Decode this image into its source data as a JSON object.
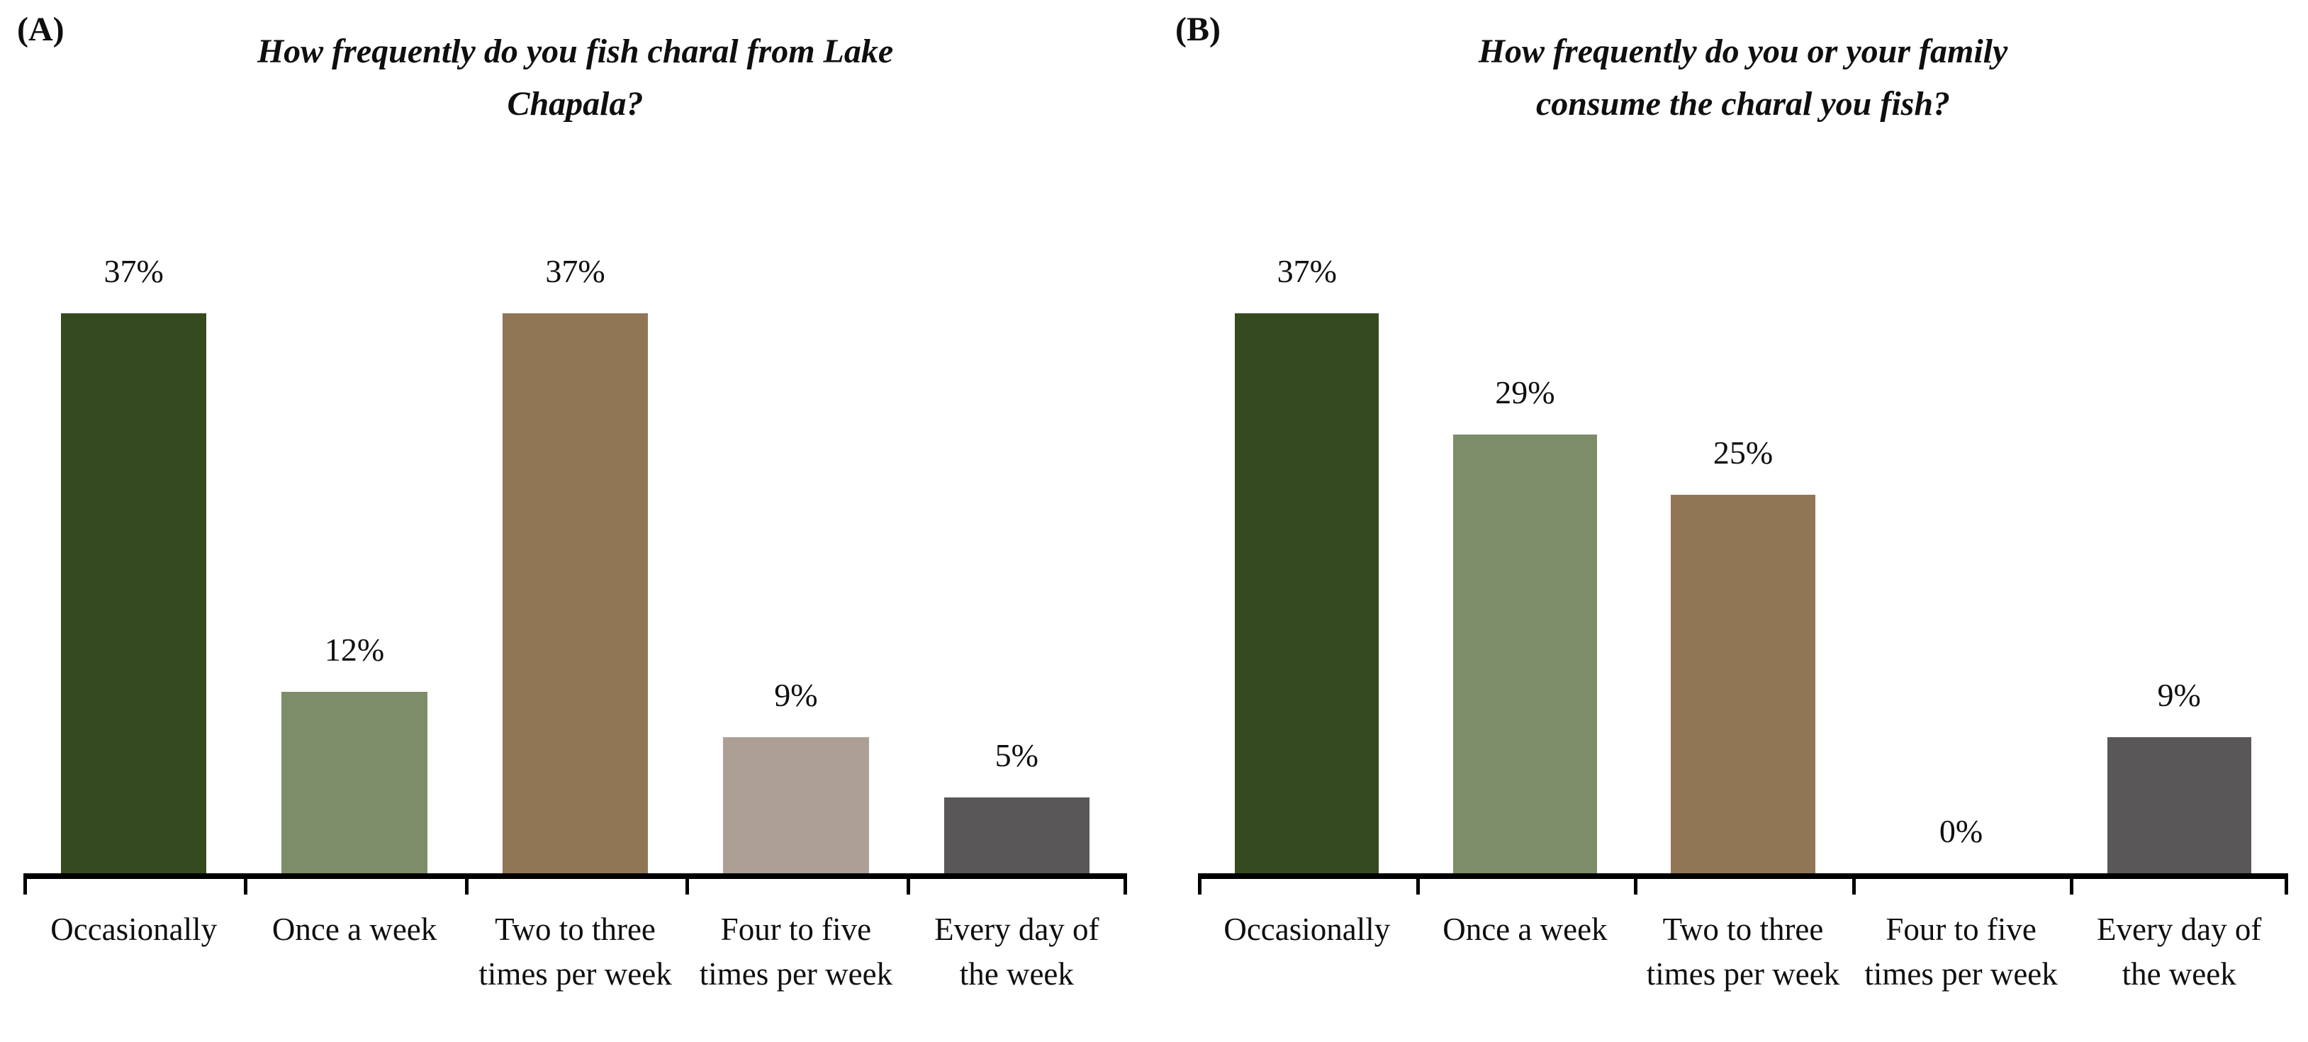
{
  "figure": {
    "background": "#ffffff",
    "axis_color": "#000000",
    "text_color": "#0f0f0f"
  },
  "chart_data": [
    {
      "type": "bar",
      "panel_label": "(A)",
      "title": "How frequently do you fish charal from Lake Chapala?",
      "title_lines": [
        "How frequently do you fish charal from Lake",
        "Chapala?"
      ],
      "categories": [
        "Occasionally",
        "Once a week",
        "Two to three times per week",
        "Four to five times per week",
        "Every day of the week"
      ],
      "values": [
        37,
        12,
        37,
        9,
        5
      ],
      "value_labels": [
        "37%",
        "12%",
        "37%",
        "9%",
        "5%"
      ],
      "bar_colors": [
        "#364a20",
        "#7e8d69",
        "#917656",
        "#aca094",
        "#595757"
      ],
      "xlabel": "",
      "ylabel": "",
      "ylim": [
        0,
        40
      ],
      "grid": false,
      "legend": "none",
      "y_axis_shown": false,
      "data_labels_position": "above-bar"
    },
    {
      "type": "bar",
      "panel_label": "(B)",
      "title": "How frequently do you or your family consume the charal you fish?",
      "title_lines": [
        "How frequently do you or your family",
        "consume the charal you fish?"
      ],
      "categories": [
        "Occasionally",
        "Once a week",
        "Two to three times per week",
        "Four to five times per week",
        "Every day of the week"
      ],
      "values": [
        37,
        29,
        25,
        0,
        9
      ],
      "value_labels": [
        "37%",
        "29%",
        "25%",
        "0%",
        "9%"
      ],
      "bar_colors": [
        "#364a20",
        "#7e8d69",
        "#917656",
        "#aca094",
        "#595757"
      ],
      "xlabel": "",
      "ylabel": "",
      "ylim": [
        0,
        40
      ],
      "grid": false,
      "legend": "none",
      "y_axis_shown": false,
      "data_labels_position": "above-bar"
    }
  ]
}
